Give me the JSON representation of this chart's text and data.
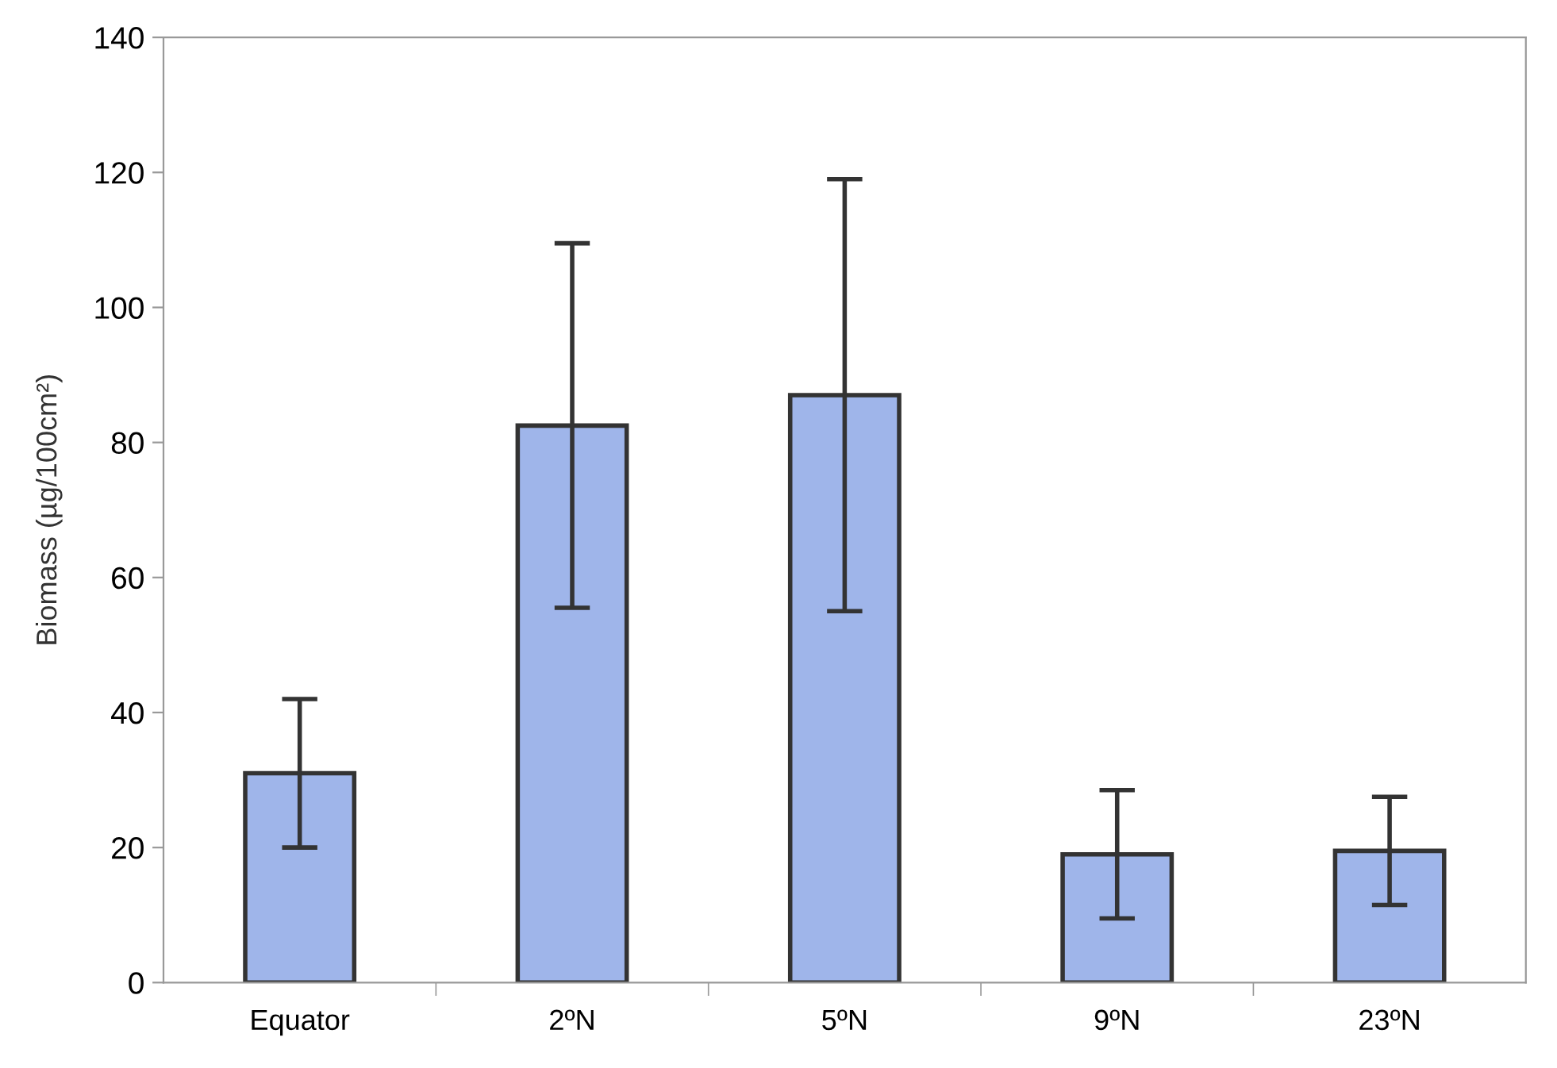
{
  "chart_data": {
    "type": "bar",
    "ylabel": "Biomass (µg/100cm²)",
    "categories": [
      "Equator",
      "2ºN",
      "5ºN",
      "9ºN",
      "23ºN"
    ],
    "values": [
      31,
      82.5,
      87,
      19,
      19.5
    ],
    "errors": [
      11,
      27,
      32,
      9.5,
      8
    ],
    "color": "#9fb5ea",
    "ylim": [
      0,
      140
    ],
    "yticks": [
      0,
      20,
      40,
      60,
      80,
      100,
      120,
      140
    ],
    "grid": false,
    "legend": false
  }
}
